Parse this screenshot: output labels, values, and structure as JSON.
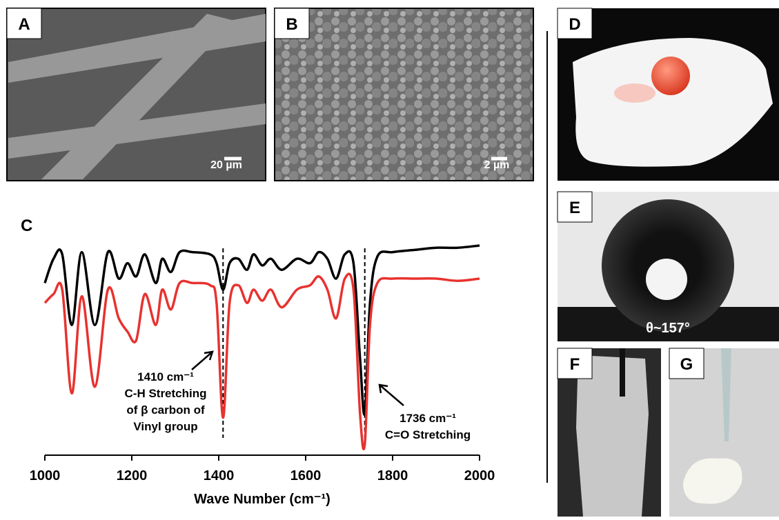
{
  "panels": {
    "A": {
      "label": "A",
      "scale_bar": "20 µm"
    },
    "B": {
      "label": "B",
      "scale_bar": "2 µm"
    },
    "C": {
      "label": "C"
    },
    "D": {
      "label": "D"
    },
    "E": {
      "label": "E",
      "angle": "θ~157°"
    },
    "F": {
      "label": "F"
    },
    "G": {
      "label": "G"
    }
  },
  "chart_data": {
    "type": "line",
    "xlabel": "Wave Number (cm⁻¹)",
    "x": [
      1000,
      1020,
      1040,
      1062,
      1085,
      1115,
      1145,
      1170,
      1190,
      1210,
      1230,
      1255,
      1270,
      1290,
      1310,
      1340,
      1380,
      1395,
      1410,
      1425,
      1445,
      1465,
      1480,
      1500,
      1520,
      1545,
      1580,
      1610,
      1630,
      1650,
      1670,
      1690,
      1710,
      1725,
      1736,
      1748,
      1765,
      1800,
      1850,
      1900,
      1950,
      2000
    ],
    "series": [
      {
        "color": "#000000",
        "values": [
          78,
          89,
          91,
          59,
          92,
          59,
          92,
          80,
          87,
          81,
          91,
          78,
          89,
          83,
          92,
          92,
          91,
          87,
          75,
          87,
          89,
          84,
          91,
          86,
          89,
          84,
          89,
          87,
          92,
          89,
          80,
          91,
          87,
          44,
          19,
          69,
          90,
          92,
          93,
          94,
          94,
          95
        ]
      },
      {
        "color": "#e8322f",
        "values": [
          69,
          73,
          75,
          28,
          72,
          31,
          75,
          62,
          56,
          52,
          73,
          59,
          75,
          66,
          78,
          78,
          77,
          69,
          17,
          69,
          77,
          69,
          75,
          70,
          75,
          67,
          75,
          77,
          81,
          75,
          62,
          80,
          75,
          19,
          5,
          59,
          78,
          80,
          80,
          80,
          79,
          80
        ]
      }
    ],
    "xlim": [
      1000,
      2000
    ],
    "ylim": [
      0,
      100
    ],
    "xticks": [
      1000,
      1200,
      1400,
      1600,
      1800,
      2000
    ],
    "vlines": [
      1410,
      1736
    ],
    "annotations": [
      {
        "lines": [
          "1410 cm⁻¹",
          "C-H Stretching",
          "of β carbon of",
          "Vinyl group"
        ]
      },
      {
        "lines": [
          "1736 cm⁻¹",
          "C=O Stretching"
        ]
      }
    ]
  }
}
